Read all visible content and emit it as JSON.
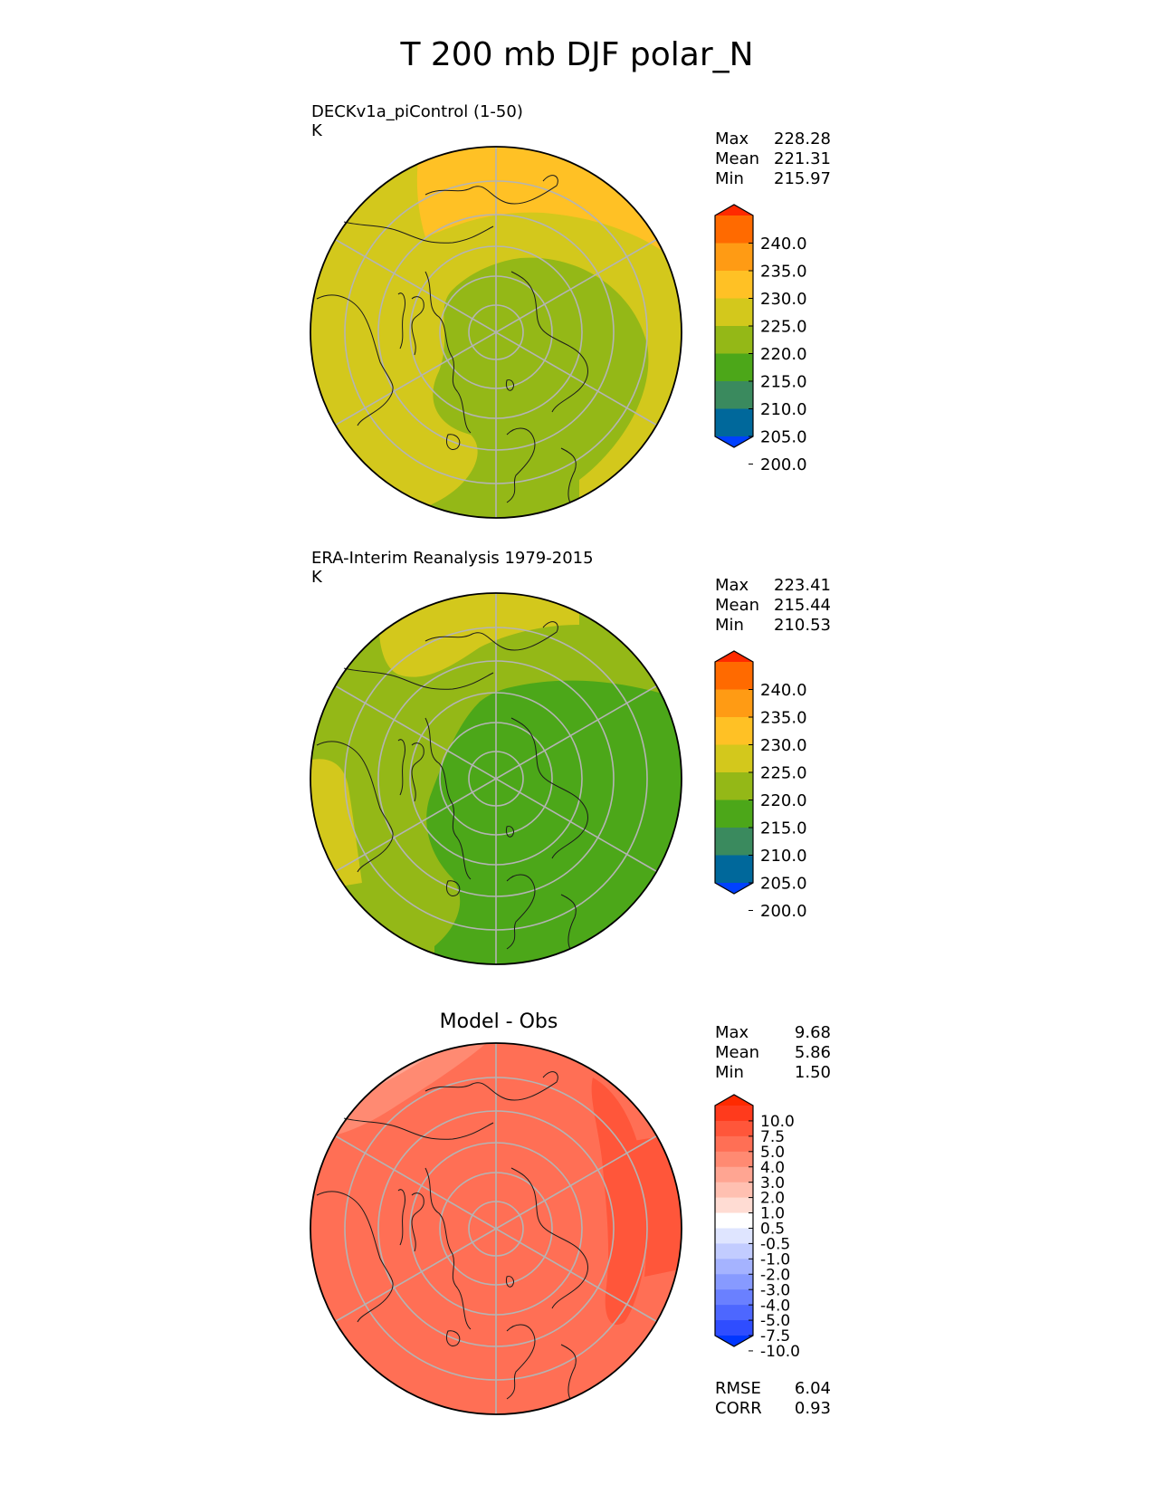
{
  "title": "T 200 mb DJF polar_N",
  "panels": [
    {
      "title": "DECKv1a_piControl (1-50)",
      "units": "K",
      "stats": [
        {
          "label": "Max",
          "value": "228.28"
        },
        {
          "label": "Mean",
          "value": "221.31"
        },
        {
          "label": "Min",
          "value": "215.97"
        }
      ],
      "colorbar": {
        "labels": [
          "240.0",
          "235.0",
          "230.0",
          "225.0",
          "220.0",
          "215.0",
          "210.0",
          "205.0",
          "200.0"
        ],
        "colors": [
          "#ff2a00",
          "#ff6a00",
          "#ff9b14",
          "#ffc125",
          "#d3c81c",
          "#94b817",
          "#4ca719",
          "#3a8a5e",
          "#00689b",
          "#0041ff"
        ]
      }
    },
    {
      "title": "ERA-Interim Reanalysis 1979-2015",
      "units": "K",
      "stats": [
        {
          "label": "Max",
          "value": "223.41"
        },
        {
          "label": "Mean",
          "value": "215.44"
        },
        {
          "label": "Min",
          "value": "210.53"
        }
      ],
      "colorbar": {
        "labels": [
          "240.0",
          "235.0",
          "230.0",
          "225.0",
          "220.0",
          "215.0",
          "210.0",
          "205.0",
          "200.0"
        ],
        "colors": [
          "#ff2a00",
          "#ff6a00",
          "#ff9b14",
          "#ffc125",
          "#d3c81c",
          "#94b817",
          "#4ca719",
          "#3a8a5e",
          "#00689b",
          "#0041ff"
        ]
      }
    },
    {
      "title": "Model - Obs",
      "stats": [
        {
          "label": "Max",
          "value": "9.68"
        },
        {
          "label": "Mean",
          "value": "5.86"
        },
        {
          "label": "Min",
          "value": "1.50"
        }
      ],
      "metrics": [
        {
          "label": "RMSE",
          "value": "6.04"
        },
        {
          "label": "CORR",
          "value": "0.93"
        }
      ],
      "colorbar": {
        "labels": [
          "10.0",
          "7.5",
          "5.0",
          "4.0",
          "3.0",
          "2.0",
          "1.0",
          "0.5",
          "-0.5",
          "-1.0",
          "-2.0",
          "-3.0",
          "-4.0",
          "-5.0",
          "-7.5",
          "-10.0"
        ],
        "colors": [
          "#ff2a00",
          "#ff3a1c",
          "#ff563a",
          "#ff6f55",
          "#ff8a72",
          "#ffa592",
          "#ffc0b1",
          "#ffdcd3",
          "#ffffff",
          "#dfe5ff",
          "#c2ccff",
          "#a5b3ff",
          "#879aff",
          "#6a80ff",
          "#4d67ff",
          "#2f4dff",
          "#0037ff"
        ]
      }
    }
  ],
  "chart_data": [
    {
      "type": "heatmap",
      "projection": "north-polar-stereographic",
      "title": "DECKv1a_piControl (1-50)",
      "units": "K",
      "levels": [
        200,
        205,
        210,
        215,
        220,
        225,
        230,
        235,
        240
      ],
      "extend": "both",
      "stats": {
        "max": 228.28,
        "mean": 221.31,
        "min": 215.97
      }
    },
    {
      "type": "heatmap",
      "projection": "north-polar-stereographic",
      "title": "ERA-Interim Reanalysis 1979-2015",
      "units": "K",
      "levels": [
        200,
        205,
        210,
        215,
        220,
        225,
        230,
        235,
        240
      ],
      "extend": "both",
      "stats": {
        "max": 223.41,
        "mean": 215.44,
        "min": 210.53
      }
    },
    {
      "type": "heatmap",
      "projection": "north-polar-stereographic",
      "title": "Model - Obs",
      "levels": [
        -10.0,
        -7.5,
        -5.0,
        -4.0,
        -3.0,
        -2.0,
        -1.0,
        -0.5,
        0.5,
        1.0,
        2.0,
        3.0,
        4.0,
        5.0,
        7.5,
        10.0
      ],
      "extend": "both",
      "stats": {
        "max": 9.68,
        "mean": 5.86,
        "min": 1.5
      },
      "rmse": 6.04,
      "corr": 0.93
    }
  ]
}
